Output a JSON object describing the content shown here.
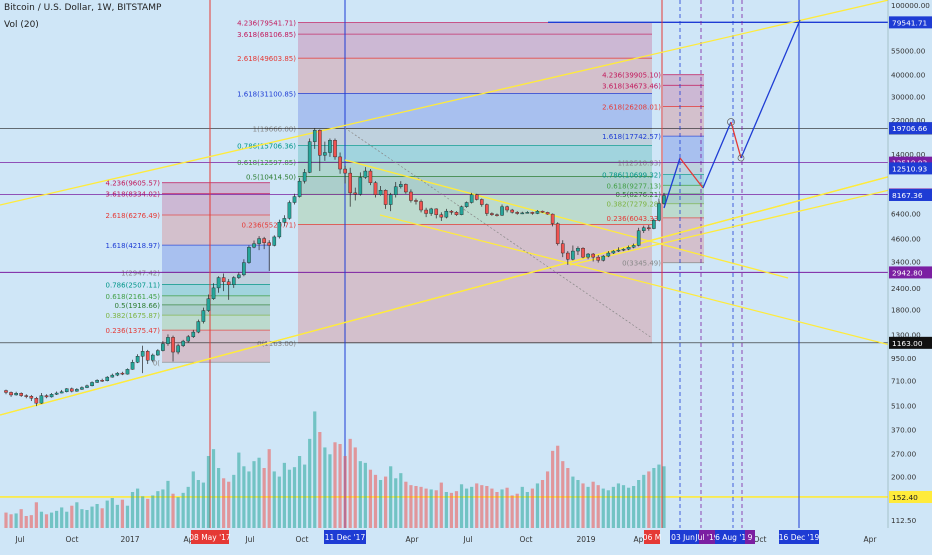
{
  "header": {
    "title": "Bitcoin / U.S. Dollar, 1W, BITSTAMP",
    "volume_label": "Vol (20)"
  },
  "chart_data": {
    "type": "candlestick",
    "scale": "log",
    "colors": {
      "up": "#26a69a",
      "down": "#ef5350",
      "background": "#cfe6f7",
      "trendline": "#ffeb3b",
      "red_line": "#e53935",
      "blue_line": "#1e3cd4",
      "purple_line": "#7b1fa2"
    },
    "price_axis": {
      "ticks": [
        "100000.00",
        "55000.00",
        "40000.00",
        "30000.00",
        "22000.00",
        "14000.00",
        "12000.00",
        "6400.00",
        "4600.00",
        "3400.00",
        "2400.00",
        "1800.00",
        "1300.00",
        "950.00",
        "710.00",
        "510.00",
        "370.00",
        "270.00",
        "200.00",
        "112.50"
      ],
      "labels": [
        {
          "text": "79541.71",
          "value": 79541.71,
          "color": "#1e3cd4"
        },
        {
          "text": "19666.00",
          "value": 19666,
          "color": "#111111"
        },
        {
          "text": "19706.66",
          "value": 19706.66,
          "color": "#1e3cd4"
        },
        {
          "text": "12510.93",
          "value": 12510.93,
          "color": "#7b1fa2"
        },
        {
          "text": "12510.93",
          "value": 11600,
          "color": "#1e3cd4"
        },
        {
          "text": "8220.81",
          "value": 8220.81,
          "color": "#7b1fa2"
        },
        {
          "text": "8167.36",
          "value": 8167.36,
          "color": "#1e3cd4"
        },
        {
          "text": "2942.80",
          "value": 2942.8,
          "color": "#7b1fa2"
        },
        {
          "text": "1163.00",
          "value": 1163,
          "color": "#111111"
        },
        {
          "text": "152.40",
          "value": 152.4,
          "color": "#ffeb3b"
        }
      ]
    },
    "time_axis": {
      "ticks": [
        "Jul",
        "Oct",
        "2017",
        "Apr",
        "Jul",
        "Oct",
        "Apr",
        "Jul",
        "Oct",
        "2019",
        "Apr",
        "Jul",
        "Oct",
        "Apr"
      ],
      "labels": [
        {
          "text": "08 May '17",
          "color": "#e53935"
        },
        {
          "text": "11 Dec '17",
          "color": "#1e3cd4"
        },
        {
          "text": "06 M",
          "color": "#e53935"
        },
        {
          "text": "03 Jun '19",
          "color": "#1e3cd4"
        },
        {
          "text": "Jul '19",
          "color": "#7b1fa2"
        },
        {
          "text": "6 Aug '19",
          "color": "#1e3cd4"
        },
        {
          "text": "9",
          "color": "#7b1fa2"
        },
        {
          "text": "16 Dec '19",
          "color": "#1e3cd4"
        }
      ]
    },
    "fib_left": [
      {
        "label": "4.236(9605.57)",
        "level": 4.236,
        "value": 9605.57,
        "color": "#c2185b"
      },
      {
        "label": "3.618(8334.02)",
        "level": 3.618,
        "value": 8334.02,
        "color": "#c2185b"
      },
      {
        "label": "2.618(6276.49)",
        "level": 2.618,
        "value": 6276.49,
        "color": "#e53935"
      },
      {
        "label": "1.618(4218.97)",
        "level": 1.618,
        "value": 4218.97,
        "color": "#1e3cd4"
      },
      {
        "label": "1(2947.42)",
        "level": 1,
        "value": 2947.42,
        "color": "#888888"
      },
      {
        "label": "0.786(2507.11)",
        "level": 0.786,
        "value": 2507.11,
        "color": "#009688"
      },
      {
        "label": "0.618(2161.45)",
        "level": 0.618,
        "value": 2161.45,
        "color": "#43a047"
      },
      {
        "label": "0.5(1918.66)",
        "level": 0.5,
        "value": 1918.66,
        "color": "#2e7d32"
      },
      {
        "label": "0.382(1675.87)",
        "level": 0.382,
        "value": 1675.87,
        "color": "#7cb342"
      },
      {
        "label": "0.236(1375.47)",
        "level": 0.236,
        "value": 1375.47,
        "color": "#e53935"
      },
      {
        "label": "0(",
        "level": 0,
        "value": 900,
        "color": "#888888"
      }
    ],
    "fib_middle": [
      {
        "label": "4.236(79541.71)",
        "level": 4.236,
        "value": 79541.71,
        "color": "#c2185b"
      },
      {
        "label": "3.618(68106.85)",
        "level": 3.618,
        "value": 68106.85,
        "color": "#c2185b"
      },
      {
        "label": "2.618(49603.85)",
        "level": 2.618,
        "value": 49603.85,
        "color": "#e53935"
      },
      {
        "label": "1.618(31100.85)",
        "level": 1.618,
        "value": 31100.85,
        "color": "#1e3cd4"
      },
      {
        "label": "1(19666.00)",
        "level": 1,
        "value": 19666,
        "color": "#888888"
      },
      {
        "label": "0.786(15706.36)",
        "level": 0.786,
        "value": 15706.36,
        "color": "#009688"
      },
      {
        "label": "0.618(12597.85)",
        "level": 0.618,
        "value": 12597.85,
        "color": "#43a047"
      },
      {
        "label": "0.5(10414.50)",
        "level": 0.5,
        "value": 10414.5,
        "color": "#2e7d32"
      },
      {
        "label": "",
        "level": 0.382,
        "value": 8240,
        "color": "#7cb342"
      },
      {
        "label": "0.236(5529.71)",
        "level": 0.236,
        "value": 5529.71,
        "color": "#e53935"
      },
      {
        "label": "0(1163.00)",
        "level": 0,
        "value": 1163,
        "color": "#888888"
      }
    ],
    "fib_right": [
      {
        "label": "4.236(39905.10)",
        "level": 4.236,
        "value": 39905.1,
        "color": "#c2185b"
      },
      {
        "label": "3.618(34673.46)",
        "level": 3.618,
        "value": 34673.46,
        "color": "#c2185b"
      },
      {
        "label": "2.618(26208.01)",
        "level": 2.618,
        "value": 26208.01,
        "color": "#e53935"
      },
      {
        "label": "1.618(17742.57)",
        "level": 1.618,
        "value": 17742.57,
        "color": "#1e3cd4"
      },
      {
        "label": "1(12510.93)",
        "level": 1,
        "value": 12510.93,
        "color": "#888888"
      },
      {
        "label": "0.786(10699.32)",
        "level": 0.786,
        "value": 10699.32,
        "color": "#009688"
      },
      {
        "label": "0.618(9277.13)",
        "level": 0.618,
        "value": 9277.13,
        "color": "#43a047"
      },
      {
        "label": "0.5(8276.21)",
        "level": 0.5,
        "value": 8276.21,
        "color": "#2e7d32"
      },
      {
        "label": "0.382(7279.28)",
        "level": 0.382,
        "value": 7279.28,
        "color": "#7cb342"
      },
      {
        "label": "0.236(6043.33)",
        "level": 0.236,
        "value": 6043.33,
        "color": "#e53935"
      },
      {
        "label": "0(3345.49)",
        "level": 0,
        "value": 3345.49,
        "color": "#888888"
      }
    ],
    "candles": [
      [
        620,
        605,
        628,
        590
      ],
      [
        605,
        585,
        612,
        570
      ],
      [
        585,
        598,
        610,
        580
      ],
      [
        598,
        580,
        605,
        570
      ],
      [
        580,
        575,
        590,
        560
      ],
      [
        575,
        560,
        585,
        540
      ],
      [
        560,
        525,
        570,
        505
      ],
      [
        525,
        580,
        600,
        520
      ],
      [
        580,
        570,
        590,
        560
      ],
      [
        570,
        590,
        600,
        565
      ],
      [
        590,
        600,
        612,
        585
      ],
      [
        600,
        610,
        625,
        598
      ],
      [
        610,
        635,
        640,
        605
      ],
      [
        635,
        615,
        645,
        605
      ],
      [
        615,
        630,
        640,
        610
      ],
      [
        630,
        645,
        655,
        625
      ],
      [
        645,
        660,
        670,
        640
      ],
      [
        660,
        690,
        700,
        655
      ],
      [
        690,
        710,
        720,
        685
      ],
      [
        710,
        705,
        725,
        695
      ],
      [
        705,
        740,
        750,
        700
      ],
      [
        740,
        760,
        775,
        735
      ],
      [
        760,
        780,
        790,
        750
      ],
      [
        780,
        770,
        795,
        760
      ],
      [
        770,
        820,
        830,
        765
      ],
      [
        820,
        900,
        930,
        815
      ],
      [
        900,
        975,
        1000,
        890
      ],
      [
        975,
        1040,
        1120,
        780
      ],
      [
        1040,
        925,
        1060,
        880
      ],
      [
        925,
        990,
        1010,
        900
      ],
      [
        990,
        1050,
        1070,
        980
      ],
      [
        1050,
        1150,
        1190,
        1040
      ],
      [
        1150,
        1250,
        1300,
        1120
      ],
      [
        1250,
        1030,
        1280,
        910
      ],
      [
        1030,
        1120,
        1150,
        1000
      ],
      [
        1120,
        1190,
        1210,
        1100
      ],
      [
        1190,
        1260,
        1290,
        1170
      ],
      [
        1260,
        1340,
        1380,
        1240
      ],
      [
        1340,
        1540,
        1580,
        1320
      ],
      [
        1540,
        1780,
        1850,
        1500
      ],
      [
        1780,
        2080,
        2200,
        1750
      ],
      [
        2080,
        2400,
        2550,
        2050
      ],
      [
        2400,
        2750,
        2800,
        2250
      ],
      [
        2750,
        2600,
        2900,
        2300
      ],
      [
        2600,
        2500,
        2700,
        2050
      ],
      [
        2500,
        2750,
        2800,
        2400
      ],
      [
        2750,
        2850,
        2950,
        2700
      ],
      [
        2850,
        3350,
        3500,
        2800
      ],
      [
        3350,
        4100,
        4200,
        3300
      ],
      [
        4100,
        4300,
        4480,
        4050
      ],
      [
        4300,
        4600,
        4750,
        3950
      ],
      [
        4600,
        4350,
        4700,
        4000
      ],
      [
        4350,
        4200,
        4500,
        3000
      ],
      [
        4200,
        4700,
        4800,
        4150
      ],
      [
        4700,
        5700,
        5900,
        4600
      ],
      [
        5700,
        6000,
        6250,
        5400
      ],
      [
        6000,
        7400,
        7600,
        5900
      ],
      [
        7400,
        8000,
        8300,
        7200
      ],
      [
        8000,
        9800,
        10200,
        7900
      ],
      [
        9800,
        11000,
        11500,
        9500
      ],
      [
        11000,
        16500,
        17200,
        10900
      ],
      [
        16500,
        19200,
        19666,
        15000
      ],
      [
        19200,
        13800,
        19400,
        11200
      ],
      [
        13800,
        14300,
        16500,
        12800
      ],
      [
        14300,
        16800,
        17200,
        13500
      ],
      [
        16800,
        13500,
        17200,
        13000
      ],
      [
        13500,
        11500,
        14300,
        10800
      ],
      [
        11500,
        10900,
        12000,
        9500
      ],
      [
        10900,
        8400,
        11700,
        7000
      ],
      [
        8400,
        8250,
        9000,
        7600
      ],
      [
        8250,
        10300,
        11000,
        8100
      ],
      [
        10300,
        11200,
        11800,
        10100
      ],
      [
        11200,
        9600,
        11500,
        9300
      ],
      [
        9600,
        8200,
        9800,
        7900
      ],
      [
        8200,
        8700,
        9200,
        8100
      ],
      [
        8700,
        7200,
        8800,
        6800
      ],
      [
        7200,
        8200,
        8400,
        6600
      ],
      [
        8200,
        9100,
        9700,
        7900
      ],
      [
        9100,
        9400,
        9800,
        8900
      ],
      [
        9400,
        8500,
        9500,
        8300
      ],
      [
        8500,
        7600,
        8800,
        7400
      ],
      [
        7600,
        7500,
        7800,
        7200
      ],
      [
        7500,
        6700,
        7700,
        6500
      ],
      [
        6700,
        6400,
        6900,
        6100
      ],
      [
        6400,
        6800,
        6900,
        6200
      ],
      [
        6800,
        6300,
        6850,
        6000
      ],
      [
        6300,
        6100,
        6500,
        5800
      ],
      [
        6100,
        6600,
        6800,
        6000
      ],
      [
        6600,
        6500,
        6700,
        6300
      ],
      [
        6500,
        6300,
        6600,
        6200
      ],
      [
        6300,
        7000,
        7100,
        6250
      ],
      [
        7000,
        7400,
        7500,
        6900
      ],
      [
        7400,
        8200,
        8400,
        7300
      ],
      [
        8200,
        7700,
        8300,
        7600
      ],
      [
        7700,
        7200,
        7800,
        7000
      ],
      [
        7200,
        6400,
        7300,
        6200
      ],
      [
        6400,
        6300,
        6500,
        6200
      ],
      [
        6300,
        6250,
        6400,
        6150
      ],
      [
        6250,
        7000,
        7200,
        6200
      ],
      [
        7000,
        6700,
        7100,
        6500
      ],
      [
        6700,
        6500,
        6800,
        6400
      ],
      [
        6500,
        6400,
        6600,
        6300
      ],
      [
        6400,
        6450,
        6550,
        6350
      ],
      [
        6450,
        6500,
        6600,
        6400
      ],
      [
        6500,
        6400,
        6550,
        6300
      ],
      [
        6400,
        6600,
        6700,
        6350
      ],
      [
        6600,
        6500,
        6650,
        6450
      ],
      [
        6500,
        6350,
        6550,
        6300
      ],
      [
        6350,
        5600,
        6400,
        5400
      ],
      [
        5600,
        4300,
        5700,
        4200
      ],
      [
        4300,
        3800,
        4500,
        3600
      ],
      [
        3800,
        3500,
        3900,
        3250
      ],
      [
        3500,
        3900,
        4200,
        3450
      ],
      [
        3900,
        4050,
        4150,
        3700
      ],
      [
        4050,
        3600,
        4100,
        3550
      ],
      [
        3600,
        3750,
        3800,
        3500
      ],
      [
        3750,
        3600,
        3800,
        3400
      ],
      [
        3600,
        3450,
        3700,
        3350
      ],
      [
        3450,
        3650,
        3700,
        3400
      ],
      [
        3650,
        3800,
        3900,
        3600
      ],
      [
        3800,
        3900,
        3950,
        3750
      ],
      [
        3900,
        3950,
        4100,
        3850
      ],
      [
        3950,
        4000,
        4050,
        3900
      ],
      [
        4000,
        4100,
        4200,
        3950
      ],
      [
        4100,
        4200,
        4300,
        4050
      ],
      [
        4200,
        5100,
        5300,
        4150
      ],
      [
        5100,
        5300,
        5450,
        4950
      ],
      [
        5300,
        5250,
        5500,
        5100
      ],
      [
        5250,
        5850,
        6000,
        5200
      ],
      [
        5850,
        7300,
        7800,
        5800
      ],
      [
        7300,
        8100,
        8400,
        7200
      ]
    ],
    "volumes": [
      90,
      80,
      85,
      110,
      70,
      75,
      150,
      95,
      80,
      90,
      100,
      120,
      95,
      130,
      150,
      110,
      105,
      125,
      140,
      115,
      160,
      175,
      135,
      165,
      130,
      210,
      230,
      185,
      170,
      190,
      215,
      225,
      275,
      200,
      180,
      205,
      240,
      330,
      280,
      265,
      420,
      460,
      350,
      290,
      270,
      310,
      440,
      360,
      330,
      390,
      410,
      350,
      460,
      330,
      300,
      380,
      340,
      355,
      420,
      370,
      520,
      680,
      560,
      470,
      430,
      500,
      490,
      420,
      520,
      470,
      390,
      380,
      340,
      310,
      280,
      300,
      360,
      290,
      320,
      270,
      250,
      245,
      240,
      230,
      225,
      220,
      265,
      210,
      205,
      215,
      255,
      230,
      240,
      260,
      250,
      245,
      230,
      210,
      225,
      235,
      190,
      200,
      240,
      210,
      230,
      260,
      280,
      330,
      450,
      480,
      390,
      350,
      300,
      280,
      260,
      240,
      270,
      250,
      230,
      220,
      240,
      260,
      250,
      235,
      245,
      280,
      310,
      330,
      350,
      370,
      360
    ]
  }
}
